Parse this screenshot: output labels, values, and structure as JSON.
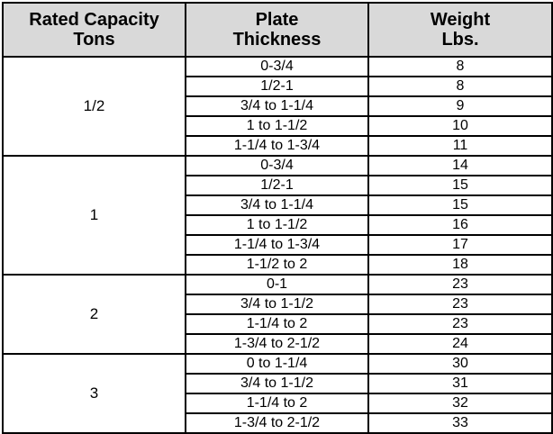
{
  "headers": [
    {
      "line1": "Rated Capacity",
      "line2": "Tons"
    },
    {
      "line1": "Plate",
      "line2": "Thickness"
    },
    {
      "line1": "Weight",
      "line2": "Lbs."
    }
  ],
  "groups": [
    {
      "capacity": "1/2",
      "rows": [
        {
          "thickness": "0-3/4",
          "weight": "8"
        },
        {
          "thickness": "1/2-1",
          "weight": "8"
        },
        {
          "thickness": "3/4 to 1-1/4",
          "weight": "9"
        },
        {
          "thickness": "1 to 1-1/2",
          "weight": "10"
        },
        {
          "thickness": "1-1/4 to 1-3/4",
          "weight": "11"
        }
      ]
    },
    {
      "capacity": "1",
      "rows": [
        {
          "thickness": "0-3/4",
          "weight": "14"
        },
        {
          "thickness": "1/2-1",
          "weight": "15"
        },
        {
          "thickness": "3/4 to 1-1/4",
          "weight": "15"
        },
        {
          "thickness": "1 to 1-1/2",
          "weight": "16"
        },
        {
          "thickness": "1-1/4 to 1-3/4",
          "weight": "17"
        },
        {
          "thickness": "1-1/2 to 2",
          "weight": "18"
        }
      ]
    },
    {
      "capacity": "2",
      "rows": [
        {
          "thickness": "0-1",
          "weight": "23"
        },
        {
          "thickness": "3/4 to 1-1/2",
          "weight": "23"
        },
        {
          "thickness": "1-1/4 to 2",
          "weight": "23"
        },
        {
          "thickness": "1-3/4 to 2-1/2",
          "weight": "24"
        }
      ]
    },
    {
      "capacity": "3",
      "rows": [
        {
          "thickness": "0 to 1-1/4",
          "weight": "30"
        },
        {
          "thickness": "3/4 to 1-1/2",
          "weight": "31"
        },
        {
          "thickness": "1-1/4 to 2",
          "weight": "32"
        },
        {
          "thickness": "1-3/4 to 2-1/2",
          "weight": "33"
        }
      ]
    }
  ]
}
